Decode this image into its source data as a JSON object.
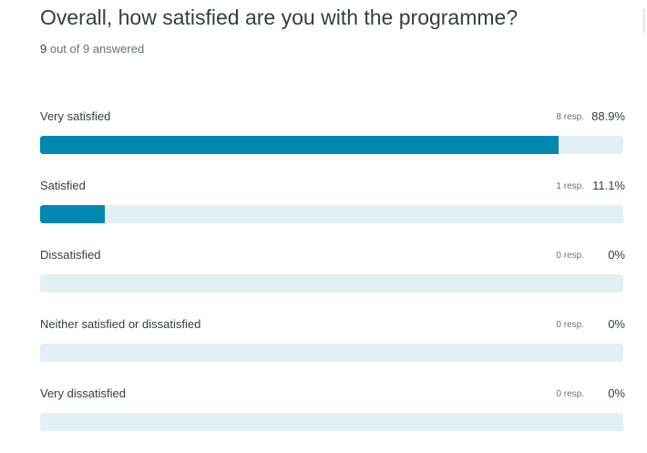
{
  "question": {
    "title": "Overall, how satisfied are you with the programme?",
    "answered_count": "9",
    "answered_suffix": " out of 9 answered"
  },
  "colors": {
    "bar_fill": "#0088b1",
    "bar_track": "#e2f0f5",
    "text": "#333e48",
    "muted": "#6a7178"
  },
  "options": [
    {
      "label": "Very satisfied",
      "responses": "8 resp.",
      "percent": "88.9%",
      "fill": 0.889
    },
    {
      "label": "Satisfied",
      "responses": "1 resp.",
      "percent": "11.1%",
      "fill": 0.111
    },
    {
      "label": "Dissatisfied",
      "responses": "0 resp.",
      "percent": "0%",
      "fill": 0
    },
    {
      "label": "Neither satisfied or dissatisfied",
      "responses": "0 resp.",
      "percent": "0%",
      "fill": 0
    },
    {
      "label": "Very dissatisfied",
      "responses": "0 resp.",
      "percent": "0%",
      "fill": 0
    }
  ]
}
